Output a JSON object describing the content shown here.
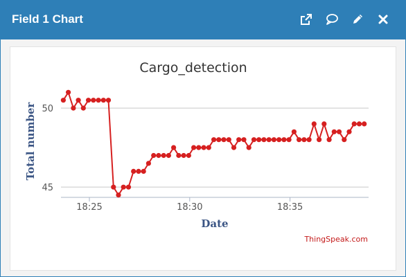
{
  "header": {
    "title": "Field 1 Chart",
    "icons": [
      "external-link-icon",
      "comment-icon",
      "pencil-icon",
      "close-icon"
    ]
  },
  "colors": {
    "header_bg": "#2e7fb7",
    "series": "#d62020",
    "axis_title": "#3b5584",
    "credit": "#c41a1a",
    "grid": "#c8c8c8"
  },
  "credit": "ThingSpeak.com",
  "chart_data": {
    "type": "line",
    "title": "Cargo_detection",
    "xlabel": "Date",
    "ylabel": "Total number",
    "x_ticks": [
      "18:25",
      "18:30",
      "18:35"
    ],
    "y_ticks": [
      45,
      50
    ],
    "xlim": [
      "18:23:35",
      "18:38:55"
    ],
    "ylim": [
      44.35,
      51.45
    ],
    "grid": true,
    "legend": "none",
    "series": [
      {
        "x": [
          "18:23:42",
          "18:23:57",
          "18:24:12",
          "18:24:27",
          "18:24:42",
          "18:24:57",
          "18:25:12",
          "18:25:27",
          "18:25:42",
          "18:25:57",
          "18:26:12",
          "18:26:27",
          "18:26:42",
          "18:26:57",
          "18:27:12",
          "18:27:27",
          "18:27:42",
          "18:27:57",
          "18:28:12",
          "18:28:27",
          "18:28:42",
          "18:28:57",
          "18:29:12",
          "18:29:27",
          "18:29:42",
          "18:29:57",
          "18:30:12",
          "18:30:27",
          "18:30:42",
          "18:30:57",
          "18:31:12",
          "18:31:27",
          "18:31:42",
          "18:31:57",
          "18:32:12",
          "18:32:27",
          "18:32:42",
          "18:32:57",
          "18:33:12",
          "18:33:27",
          "18:33:42",
          "18:33:57",
          "18:34:12",
          "18:34:27",
          "18:34:42",
          "18:34:57",
          "18:35:12",
          "18:35:27",
          "18:35:42",
          "18:35:57",
          "18:36:12",
          "18:36:27",
          "18:36:42",
          "18:36:57",
          "18:37:12",
          "18:37:27",
          "18:37:42",
          "18:37:57",
          "18:38:12",
          "18:38:27",
          "18:38:42"
        ],
        "y": [
          50.5,
          51,
          50,
          50.5,
          50,
          50.5,
          50.5,
          50.5,
          50.5,
          50.5,
          45,
          44.5,
          45,
          45,
          46,
          46,
          46,
          46.5,
          47,
          47,
          47,
          47,
          47.5,
          47,
          47,
          47,
          47.5,
          47.5,
          47.5,
          47.5,
          48,
          48,
          48,
          48,
          47.5,
          48,
          48,
          47.5,
          48,
          48,
          48,
          48,
          48,
          48,
          48,
          48,
          48.5,
          48,
          48,
          48,
          49,
          48,
          49,
          48,
          48.5,
          48.5,
          48,
          48.5,
          49,
          49,
          49
        ]
      }
    ]
  }
}
